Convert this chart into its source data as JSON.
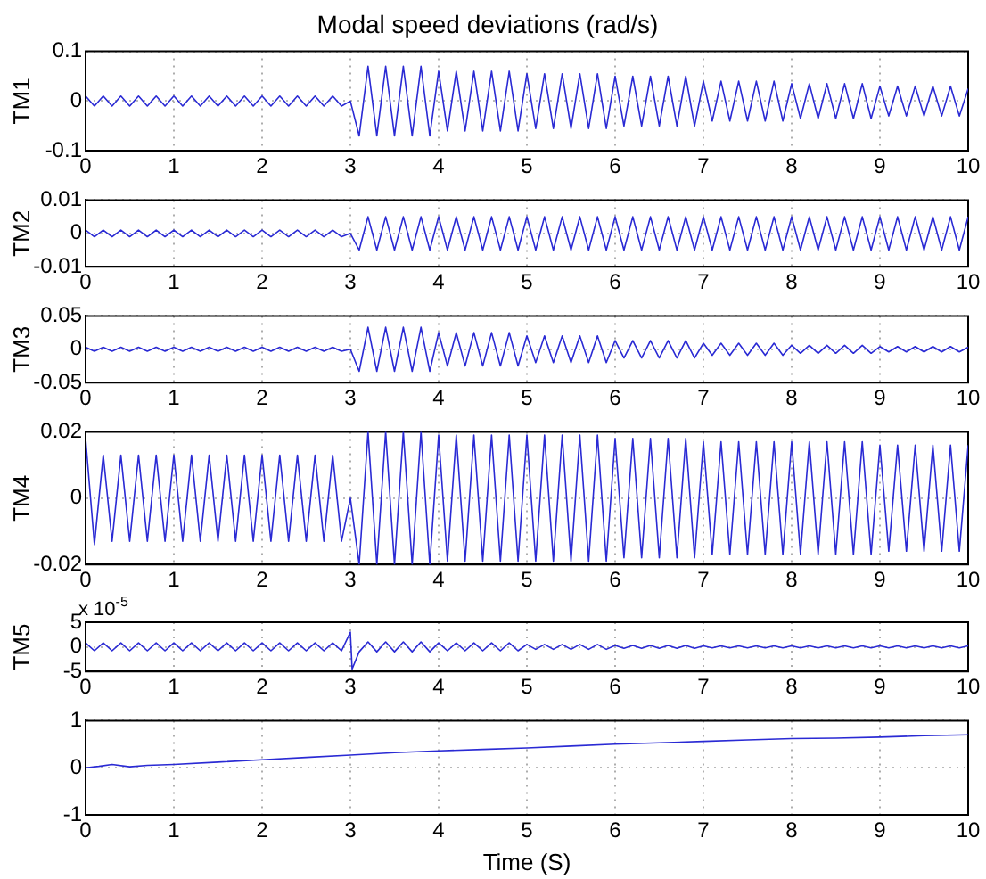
{
  "chart_data": [
    {
      "type": "line",
      "title": "Modal speed deviations (rad/s)",
      "ylabel": "TM1",
      "color": "#2a2ad4",
      "line_style": "solid",
      "grid": true,
      "xlim": [
        0,
        10
      ],
      "xticks": [
        0,
        1,
        2,
        3,
        4,
        5,
        6,
        7,
        8,
        9,
        10
      ],
      "ylim": [
        -0.1,
        0.1
      ],
      "yticks": [
        -0.1,
        0,
        0.1
      ],
      "x": [
        0,
        0.1,
        0.2,
        0.3,
        0.4,
        0.5,
        0.6,
        0.7,
        0.8,
        0.9,
        1,
        1.1,
        1.2,
        1.3,
        1.4,
        1.5,
        1.6,
        1.7,
        1.8,
        1.9,
        2,
        2.1,
        2.2,
        2.3,
        2.4,
        2.5,
        2.6,
        2.7,
        2.8,
        2.9,
        3,
        3.1,
        3.2,
        3.3,
        3.4,
        3.5,
        3.6,
        3.7,
        3.8,
        3.9,
        4,
        4.1,
        4.2,
        4.3,
        4.4,
        4.5,
        4.6,
        4.7,
        4.8,
        4.9,
        5,
        5.1,
        5.2,
        5.3,
        5.4,
        5.5,
        5.6,
        5.7,
        5.8,
        5.9,
        6,
        6.1,
        6.2,
        6.3,
        6.4,
        6.5,
        6.6,
        6.7,
        6.8,
        6.9,
        7,
        7.1,
        7.2,
        7.3,
        7.4,
        7.5,
        7.6,
        7.7,
        7.8,
        7.9,
        8,
        8.1,
        8.2,
        8.3,
        8.4,
        8.5,
        8.6,
        8.7,
        8.8,
        8.9,
        9,
        9.1,
        9.2,
        9.3,
        9.4,
        9.5,
        9.6,
        9.7,
        9.8,
        9.9,
        10
      ],
      "values": [
        0.01,
        -0.01,
        0.01,
        -0.01,
        0.01,
        -0.01,
        0.01,
        -0.01,
        0.01,
        -0.01,
        0.01,
        -0.01,
        0.01,
        -0.01,
        0.01,
        -0.01,
        0.01,
        -0.01,
        0.01,
        -0.01,
        0.01,
        -0.01,
        0.01,
        -0.01,
        0.01,
        -0.01,
        0.01,
        -0.01,
        0.01,
        -0.01,
        0,
        -0.07,
        0.07,
        -0.07,
        0.07,
        -0.07,
        0.07,
        -0.07,
        0.07,
        -0.07,
        0.06,
        -0.06,
        0.06,
        -0.06,
        0.06,
        -0.06,
        0.06,
        -0.06,
        0.06,
        -0.06,
        0.055,
        -0.055,
        0.055,
        -0.055,
        0.055,
        -0.055,
        0.055,
        -0.055,
        0.055,
        -0.055,
        0.05,
        -0.05,
        0.05,
        -0.05,
        0.05,
        -0.05,
        0.05,
        -0.05,
        0.05,
        -0.05,
        0.04,
        -0.04,
        0.04,
        -0.04,
        0.04,
        -0.04,
        0.04,
        -0.04,
        0.04,
        -0.04,
        0.035,
        -0.035,
        0.035,
        -0.035,
        0.035,
        -0.035,
        0.035,
        -0.035,
        0.035,
        -0.035,
        0.03,
        -0.03,
        0.03,
        -0.03,
        0.03,
        -0.03,
        0.03,
        -0.03,
        0.03,
        -0.03,
        0.025
      ]
    },
    {
      "type": "line",
      "ylabel": "TM2",
      "color": "#2a2ad4",
      "line_style": "solid",
      "grid": true,
      "xlim": [
        0,
        10
      ],
      "xticks": [
        0,
        1,
        2,
        3,
        4,
        5,
        6,
        7,
        8,
        9,
        10
      ],
      "ylim": [
        -0.01,
        0.01
      ],
      "yticks": [
        -0.01,
        0,
        0.01
      ],
      "x": [
        0,
        0.1,
        0.2,
        0.3,
        0.4,
        0.5,
        0.6,
        0.7,
        0.8,
        0.9,
        1,
        1.1,
        1.2,
        1.3,
        1.4,
        1.5,
        1.6,
        1.7,
        1.8,
        1.9,
        2,
        2.1,
        2.2,
        2.3,
        2.4,
        2.5,
        2.6,
        2.7,
        2.8,
        2.9,
        3,
        3.1,
        3.2,
        3.3,
        3.4,
        3.5,
        3.6,
        3.7,
        3.8,
        3.9,
        4,
        4.1,
        4.2,
        4.3,
        4.4,
        4.5,
        4.6,
        4.7,
        4.8,
        4.9,
        5,
        5.1,
        5.2,
        5.3,
        5.4,
        5.5,
        5.6,
        5.7,
        5.8,
        5.9,
        6,
        6.1,
        6.2,
        6.3,
        6.4,
        6.5,
        6.6,
        6.7,
        6.8,
        6.9,
        7,
        7.1,
        7.2,
        7.3,
        7.4,
        7.5,
        7.6,
        7.7,
        7.8,
        7.9,
        8,
        8.1,
        8.2,
        8.3,
        8.4,
        8.5,
        8.6,
        8.7,
        8.8,
        8.9,
        9,
        9.1,
        9.2,
        9.3,
        9.4,
        9.5,
        9.6,
        9.7,
        9.8,
        9.9,
        10
      ],
      "values": [
        0.001,
        -0.001,
        0.001,
        -0.001,
        0.001,
        -0.001,
        0.001,
        -0.001,
        0.001,
        -0.001,
        0.001,
        -0.001,
        0.001,
        -0.001,
        0.001,
        -0.001,
        0.001,
        -0.001,
        0.001,
        -0.001,
        0.001,
        -0.001,
        0.001,
        -0.001,
        0.001,
        -0.001,
        0.001,
        -0.001,
        0.001,
        -0.001,
        0,
        -0.005,
        0.005,
        -0.005,
        0.005,
        -0.005,
        0.005,
        -0.005,
        0.005,
        -0.005,
        0.005,
        -0.005,
        0.005,
        -0.005,
        0.005,
        -0.005,
        0.005,
        -0.005,
        0.005,
        -0.005,
        0.005,
        -0.005,
        0.005,
        -0.005,
        0.005,
        -0.005,
        0.005,
        -0.005,
        0.005,
        -0.005,
        0.005,
        -0.005,
        0.005,
        -0.005,
        0.005,
        -0.005,
        0.005,
        -0.005,
        0.005,
        -0.005,
        0.005,
        -0.005,
        0.005,
        -0.005,
        0.005,
        -0.005,
        0.005,
        -0.005,
        0.005,
        -0.005,
        0.005,
        -0.005,
        0.005,
        -0.005,
        0.005,
        -0.005,
        0.005,
        -0.005,
        0.005,
        -0.005,
        0.005,
        -0.005,
        0.005,
        -0.005,
        0.005,
        -0.005,
        0.005,
        -0.005,
        0.005,
        -0.005,
        0.005
      ]
    },
    {
      "type": "line",
      "ylabel": "TM3",
      "color": "#2a2ad4",
      "line_style": "solid",
      "grid": true,
      "xlim": [
        0,
        10
      ],
      "xticks": [
        0,
        1,
        2,
        3,
        4,
        5,
        6,
        7,
        8,
        9,
        10
      ],
      "ylim": [
        -0.05,
        0.05
      ],
      "yticks": [
        -0.05,
        0,
        0.05
      ],
      "x": [
        0,
        0.1,
        0.2,
        0.3,
        0.4,
        0.5,
        0.6,
        0.7,
        0.8,
        0.9,
        1,
        1.1,
        1.2,
        1.3,
        1.4,
        1.5,
        1.6,
        1.7,
        1.8,
        1.9,
        2,
        2.1,
        2.2,
        2.3,
        2.4,
        2.5,
        2.6,
        2.7,
        2.8,
        2.9,
        3,
        3.1,
        3.2,
        3.3,
        3.4,
        3.5,
        3.6,
        3.7,
        3.8,
        3.9,
        4,
        4.1,
        4.2,
        4.3,
        4.4,
        4.5,
        4.6,
        4.7,
        4.8,
        4.9,
        5,
        5.1,
        5.2,
        5.3,
        5.4,
        5.5,
        5.6,
        5.7,
        5.8,
        5.9,
        6,
        6.1,
        6.2,
        6.3,
        6.4,
        6.5,
        6.6,
        6.7,
        6.8,
        6.9,
        7,
        7.1,
        7.2,
        7.3,
        7.4,
        7.5,
        7.6,
        7.7,
        7.8,
        7.9,
        8,
        8.1,
        8.2,
        8.3,
        8.4,
        8.5,
        8.6,
        8.7,
        8.8,
        8.9,
        9,
        9.1,
        9.2,
        9.3,
        9.4,
        9.5,
        9.6,
        9.7,
        9.8,
        9.9,
        10
      ],
      "values": [
        0.003,
        -0.003,
        0.003,
        -0.003,
        0.003,
        -0.003,
        0.003,
        -0.003,
        0.003,
        -0.003,
        0.003,
        -0.003,
        0.003,
        -0.003,
        0.003,
        -0.003,
        0.003,
        -0.003,
        0.003,
        -0.003,
        0.003,
        -0.003,
        0.003,
        -0.003,
        0.003,
        -0.003,
        0.003,
        -0.003,
        0.003,
        -0.003,
        0,
        -0.033,
        0.033,
        -0.033,
        0.033,
        -0.033,
        0.033,
        -0.033,
        0.033,
        -0.033,
        0.025,
        -0.025,
        0.025,
        -0.025,
        0.025,
        -0.025,
        0.025,
        -0.025,
        0.025,
        -0.025,
        0.02,
        -0.02,
        0.02,
        -0.02,
        0.02,
        -0.02,
        0.02,
        -0.02,
        0.02,
        -0.02,
        0.013,
        -0.013,
        0.013,
        -0.013,
        0.013,
        -0.013,
        0.013,
        -0.013,
        0.013,
        -0.013,
        0.009,
        -0.009,
        0.009,
        -0.009,
        0.009,
        -0.009,
        0.009,
        -0.009,
        0.009,
        -0.009,
        0.006,
        -0.006,
        0.006,
        -0.006,
        0.006,
        -0.006,
        0.006,
        -0.006,
        0.006,
        -0.006,
        0.004,
        -0.004,
        0.004,
        -0.004,
        0.004,
        -0.004,
        0.004,
        -0.004,
        0.004,
        -0.004,
        0.003
      ]
    },
    {
      "type": "line",
      "ylabel": "TM4",
      "color": "#2a2ad4",
      "line_style": "solid",
      "grid": true,
      "xlim": [
        0,
        10
      ],
      "xticks": [
        0,
        1,
        2,
        3,
        4,
        5,
        6,
        7,
        8,
        9,
        10
      ],
      "ylim": [
        -0.02,
        0.02
      ],
      "yticks": [
        -0.02,
        0,
        0.02
      ],
      "x": [
        0,
        0.1,
        0.2,
        0.3,
        0.4,
        0.5,
        0.6,
        0.7,
        0.8,
        0.9,
        1,
        1.1,
        1.2,
        1.3,
        1.4,
        1.5,
        1.6,
        1.7,
        1.8,
        1.9,
        2,
        2.1,
        2.2,
        2.3,
        2.4,
        2.5,
        2.6,
        2.7,
        2.8,
        2.9,
        3,
        3.1,
        3.2,
        3.3,
        3.4,
        3.5,
        3.6,
        3.7,
        3.8,
        3.9,
        4,
        4.1,
        4.2,
        4.3,
        4.4,
        4.5,
        4.6,
        4.7,
        4.8,
        4.9,
        5,
        5.1,
        5.2,
        5.3,
        5.4,
        5.5,
        5.6,
        5.7,
        5.8,
        5.9,
        6,
        6.1,
        6.2,
        6.3,
        6.4,
        6.5,
        6.6,
        6.7,
        6.8,
        6.9,
        7,
        7.1,
        7.2,
        7.3,
        7.4,
        7.5,
        7.6,
        7.7,
        7.8,
        7.9,
        8,
        8.1,
        8.2,
        8.3,
        8.4,
        8.5,
        8.6,
        8.7,
        8.8,
        8.9,
        9,
        9.1,
        9.2,
        9.3,
        9.4,
        9.5,
        9.6,
        9.7,
        9.8,
        9.9,
        10
      ],
      "values": [
        0.018,
        -0.014,
        0.013,
        -0.013,
        0.013,
        -0.013,
        0.013,
        -0.013,
        0.013,
        -0.013,
        0.013,
        -0.013,
        0.013,
        -0.013,
        0.013,
        -0.013,
        0.013,
        -0.013,
        0.013,
        -0.013,
        0.013,
        -0.013,
        0.013,
        -0.013,
        0.013,
        -0.013,
        0.013,
        -0.013,
        0.013,
        -0.013,
        0,
        -0.02,
        0.02,
        -0.02,
        0.02,
        -0.02,
        0.02,
        -0.02,
        0.02,
        -0.02,
        0.019,
        -0.019,
        0.019,
        -0.019,
        0.019,
        -0.019,
        0.019,
        -0.019,
        0.019,
        -0.019,
        0.019,
        -0.019,
        0.019,
        -0.019,
        0.019,
        -0.019,
        0.019,
        -0.019,
        0.019,
        -0.019,
        0.018,
        -0.018,
        0.018,
        -0.018,
        0.018,
        -0.018,
        0.018,
        -0.018,
        0.018,
        -0.018,
        0.017,
        -0.017,
        0.017,
        -0.017,
        0.017,
        -0.017,
        0.017,
        -0.017,
        0.017,
        -0.017,
        0.017,
        -0.017,
        0.017,
        -0.017,
        0.017,
        -0.017,
        0.017,
        -0.017,
        0.017,
        -0.017,
        0.016,
        -0.016,
        0.016,
        -0.016,
        0.016,
        -0.016,
        0.016,
        -0.016,
        0.016,
        -0.016,
        0.016
      ]
    },
    {
      "type": "line",
      "ylabel": "TM5",
      "annotations": [
        "x 10$^{-5}$"
      ],
      "color": "#2a2ad4",
      "line_style": "solid",
      "grid": true,
      "xlim": [
        0,
        10
      ],
      "xticks": [
        0,
        1,
        2,
        3,
        4,
        5,
        6,
        7,
        8,
        9,
        10
      ],
      "ylim": [
        -5,
        5
      ],
      "yticks": [
        -5,
        0,
        5
      ],
      "x": [
        0,
        0.1,
        0.2,
        0.3,
        0.4,
        0.5,
        0.6,
        0.7,
        0.8,
        0.9,
        1,
        1.1,
        1.2,
        1.3,
        1.4,
        1.5,
        1.6,
        1.7,
        1.8,
        1.9,
        2,
        2.1,
        2.2,
        2.3,
        2.4,
        2.5,
        2.6,
        2.7,
        2.8,
        2.9,
        3,
        3.02,
        3.1,
        3.2,
        3.3,
        3.4,
        3.5,
        3.6,
        3.7,
        3.8,
        3.9,
        4,
        4.1,
        4.2,
        4.3,
        4.4,
        4.5,
        4.6,
        4.7,
        4.8,
        4.9,
        5,
        5.1,
        5.2,
        5.3,
        5.4,
        5.5,
        5.6,
        5.7,
        5.8,
        5.9,
        6,
        6.1,
        6.2,
        6.3,
        6.4,
        6.5,
        6.6,
        6.7,
        6.8,
        6.9,
        7,
        7.1,
        7.2,
        7.3,
        7.4,
        7.5,
        7.6,
        7.7,
        7.8,
        7.9,
        8,
        8.1,
        8.2,
        8.3,
        8.4,
        8.5,
        8.6,
        8.7,
        8.8,
        8.9,
        9,
        9.1,
        9.2,
        9.3,
        9.4,
        9.5,
        9.6,
        9.7,
        9.8,
        9.9,
        10
      ],
      "values": [
        0.8,
        -0.8,
        0.8,
        -0.8,
        0.8,
        -0.8,
        0.8,
        -0.8,
        0.8,
        -0.8,
        0.8,
        -0.8,
        0.8,
        -0.8,
        0.8,
        -0.8,
        0.8,
        -0.8,
        0.8,
        -0.8,
        0.8,
        -0.8,
        0.8,
        -0.8,
        0.8,
        -0.8,
        0.8,
        -0.8,
        0.8,
        -0.8,
        3,
        -4.5,
        -1,
        1,
        -1,
        1,
        -1,
        1,
        -1,
        1,
        -1,
        0.8,
        -0.8,
        0.8,
        -0.8,
        0.8,
        -0.8,
        0.8,
        -0.8,
        0.8,
        -0.8,
        0.5,
        -0.5,
        0.5,
        -0.5,
        0.5,
        -0.5,
        0.5,
        -0.5,
        0.5,
        -0.5,
        0.3,
        -0.3,
        0.3,
        -0.3,
        0.3,
        -0.3,
        0.3,
        -0.3,
        0.3,
        -0.3,
        0.2,
        -0.2,
        0.2,
        -0.2,
        0.2,
        -0.2,
        0.2,
        -0.2,
        0.2,
        -0.2,
        0.2,
        -0.2,
        0.2,
        -0.2,
        0.2,
        -0.2,
        0.2,
        -0.2,
        0.2,
        -0.2,
        0.2,
        -0.2,
        0.2,
        -0.2,
        0.2,
        -0.2,
        0.2,
        -0.2,
        0.2,
        -0.2,
        0.2
      ]
    },
    {
      "type": "line",
      "xlabel": "Time (S)",
      "color": "#2a2ad4",
      "line_style": "solid",
      "grid": true,
      "xlim": [
        0,
        10
      ],
      "xticks": [
        0,
        1,
        2,
        3,
        4,
        5,
        6,
        7,
        8,
        9,
        10
      ],
      "ylim": [
        -1,
        1
      ],
      "yticks": [
        -1,
        0,
        1
      ],
      "x": [
        0,
        0.15,
        0.3,
        0.5,
        0.7,
        1,
        1.5,
        2,
        2.5,
        3,
        3.5,
        4,
        4.5,
        5,
        5.5,
        6,
        6.5,
        7,
        7.5,
        8,
        8.5,
        9,
        9.5,
        10
      ],
      "values": [
        0,
        0.03,
        0.07,
        0.02,
        0.05,
        0.07,
        0.12,
        0.17,
        0.22,
        0.27,
        0.32,
        0.36,
        0.39,
        0.42,
        0.46,
        0.5,
        0.53,
        0.56,
        0.59,
        0.62,
        0.63,
        0.65,
        0.68,
        0.7
      ]
    }
  ]
}
